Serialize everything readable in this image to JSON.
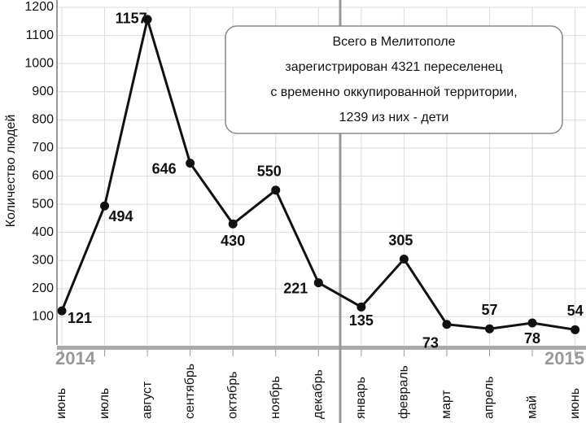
{
  "chart_data": {
    "type": "line",
    "y_label": "Количество людей",
    "categories": [
      "июнь",
      "июль",
      "август",
      "сентябрь",
      "октябрь",
      "ноябрь",
      "декабрь",
      "январь",
      "февраль",
      "март",
      "апрель",
      "май",
      "июнь"
    ],
    "values": [
      121,
      494,
      1157,
      646,
      430,
      550,
      221,
      135,
      305,
      73,
      57,
      78,
      54
    ],
    "color": "#111111",
    "ylim": [
      0,
      1200
    ],
    "yticks": [
      100,
      200,
      300,
      400,
      500,
      600,
      700,
      800,
      900,
      1000,
      1100,
      1200
    ],
    "grid": true,
    "year_labels": [
      "2014",
      "2015"
    ],
    "annotation": [
      "Всего в Мелитополе",
      "зарегистрирован 4321 переселенец",
      "с временно оккупированной территории,",
      "1239 из них - дети"
    ]
  }
}
